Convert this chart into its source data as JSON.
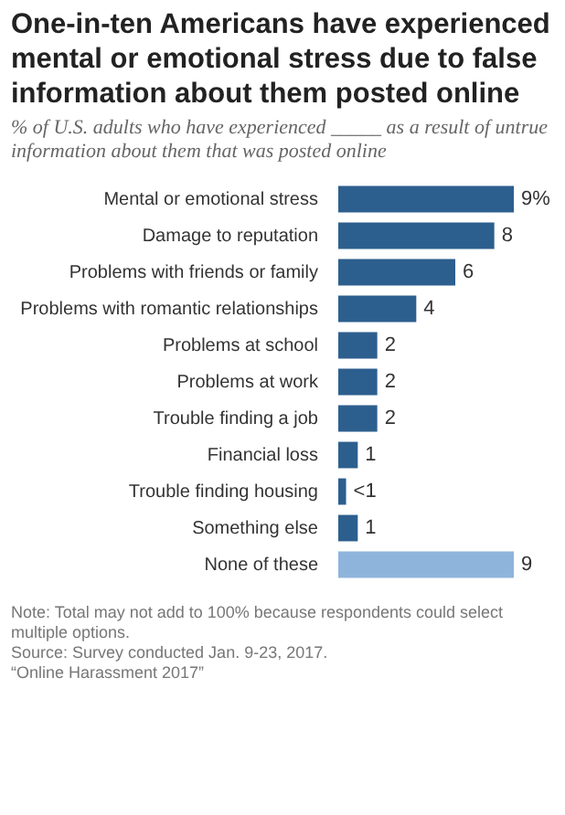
{
  "chart_data": {
    "type": "bar",
    "orientation": "horizontal",
    "title": "One-in-ten Americans have experienced mental or emotional stress due to false information about them posted online",
    "subtitle": "% of U.S. adults who have experienced _____ as a result of untrue information about them that was posted online",
    "categories": [
      "Mental or emotional stress",
      "Damage to reputation",
      "Problems with friends or family",
      "Problems with romantic relationships",
      "Problems at school",
      "Problems at work",
      "Trouble finding a job",
      "Financial loss",
      "Trouble finding housing",
      "Something else",
      "None of these"
    ],
    "values": [
      9,
      8,
      6,
      4,
      2,
      2,
      2,
      1,
      0.4,
      1,
      9
    ],
    "value_labels": [
      "9%",
      "8",
      "6",
      "4",
      "2",
      "2",
      "2",
      "1",
      "<1",
      "1",
      "9"
    ],
    "colors": [
      "#2d5f8e",
      "#2d5f8e",
      "#2d5f8e",
      "#2d5f8e",
      "#2d5f8e",
      "#2d5f8e",
      "#2d5f8e",
      "#2d5f8e",
      "#2d5f8e",
      "#2d5f8e",
      "#8fb4dc"
    ],
    "legend": false,
    "annotations": [
      "Note: Total may not add to 100% because respondents could select multiple options.",
      "Source: Survey conducted Jan. 9-23, 2017.",
      "“Online Harassment 2017”"
    ]
  }
}
